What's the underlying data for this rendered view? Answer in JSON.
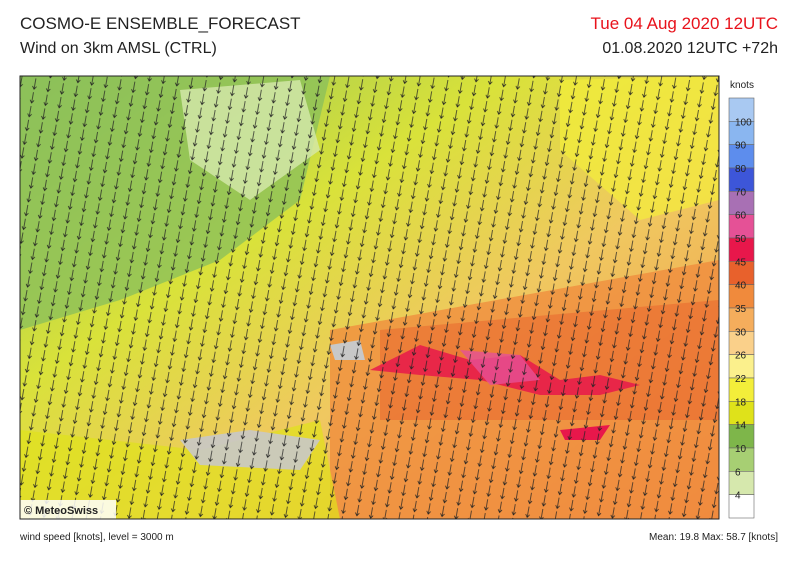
{
  "header": {
    "title": "COSMO-E ENSEMBLE_FORECAST",
    "subtitle": "Wind on 3km AMSL (CTRL)",
    "valid_time": "Tue 04 Aug 2020 12UTC",
    "run": "01.08.2020 12UTC +72h"
  },
  "colorbar": {
    "unit": "knots",
    "levels": [
      100,
      90,
      80,
      70,
      60,
      50,
      45,
      40,
      35,
      30,
      26,
      22,
      18,
      14,
      10,
      6,
      4
    ],
    "colors": [
      "#a9c9f2",
      "#8ab6f0",
      "#5d8ded",
      "#3d56d9",
      "#a870b4",
      "#e55196",
      "#e8174b",
      "#e8612c",
      "#f08a3c",
      "#f5ad5c",
      "#fad08a",
      "#fbf08c",
      "#f3ee3a",
      "#dfe21a",
      "#7eb64a",
      "#a7cf73",
      "#d6e8ad",
      "#ffffff"
    ]
  },
  "map": {
    "copyright": "© MeteoSwiss"
  },
  "footer": {
    "left": "wind speed [knots], level = 3000 m",
    "right": "Mean:  19.8 Max:  58.7 [knots]"
  }
}
